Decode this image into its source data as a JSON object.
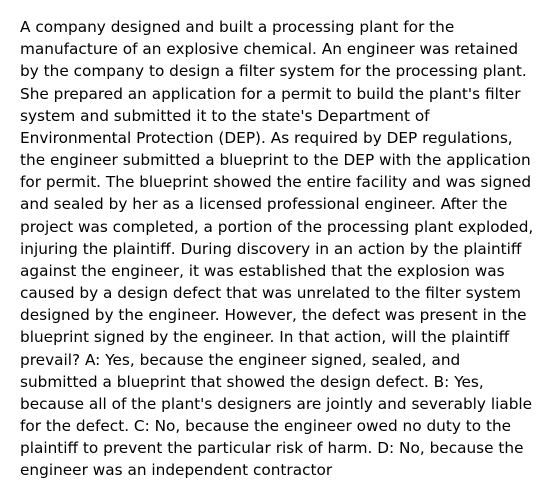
{
  "document": {
    "background_color": "#ffffff",
    "text_color": "#000000",
    "font_family": "DejaVu Sans, Verdana, Segoe UI, sans-serif",
    "font_size_pt": 11.5,
    "line_height": 1.45,
    "body_text": "A company designed and built a processing plant for the manufacture of an explosive chemical. An engineer was retained by the company to design a filter system for the processing plant. She prepared an application for a permit to build the plant's filter system and submitted it to the state's Department of Environmental Protection (DEP). As required by DEP regulations, the engineer submitted a blueprint to the DEP with the application for permit. The blueprint showed the entire facility and was signed and sealed by her as a licensed professional engineer. After the project was completed, a portion of the processing plant exploded, injuring the plaintiff. During discovery in an action by the plaintiff against the engineer, it was established that the explosion was caused by a design defect that was unrelated to the filter system designed by the engineer. However, the defect was present in the blueprint signed by the engineer. In that action, will the plaintiff prevail? A: Yes, because the engineer signed, sealed, and submitted a blueprint that showed the design defect. B: Yes, because all of the plant's designers are jointly and severably liable for the defect. C: No, because the engineer owed no duty to the plaintiff to prevent the particular risk of harm. D: No, because the engineer was an independent contractor"
  }
}
